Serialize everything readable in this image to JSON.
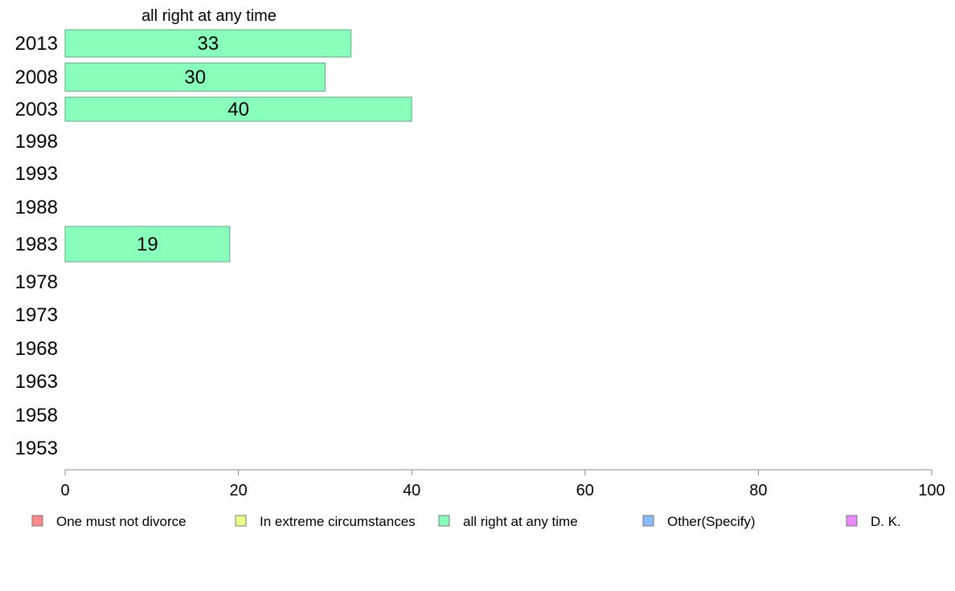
{
  "chart_data": {
    "type": "bar",
    "orientation": "horizontal",
    "title": "",
    "series_label": "all right at any time",
    "categories": [
      "2013",
      "2008",
      "2003",
      "1998",
      "1993",
      "1988",
      "1983",
      "1978",
      "1973",
      "1968",
      "1963",
      "1958",
      "1953"
    ],
    "series": [
      {
        "name": "all right at any time",
        "color": "#88ffbb",
        "values": [
          33,
          30,
          40,
          null,
          null,
          null,
          19,
          null,
          null,
          null,
          null,
          null,
          null
        ]
      }
    ],
    "xlim": [
      0,
      100
    ],
    "xticks": [
      0,
      20,
      40,
      60,
      80,
      100
    ],
    "grid": false,
    "legend_position": "bottom",
    "legend": [
      {
        "label": "One must not divorce",
        "color": "#ff8888"
      },
      {
        "label": "In extreme circumstances",
        "color": "#eeff88"
      },
      {
        "label": "all right at any time",
        "color": "#88ffbb"
      },
      {
        "label": "Other(Specify)",
        "color": "#88bbff"
      },
      {
        "label": "D. K.",
        "color": "#ee88ff"
      }
    ]
  }
}
